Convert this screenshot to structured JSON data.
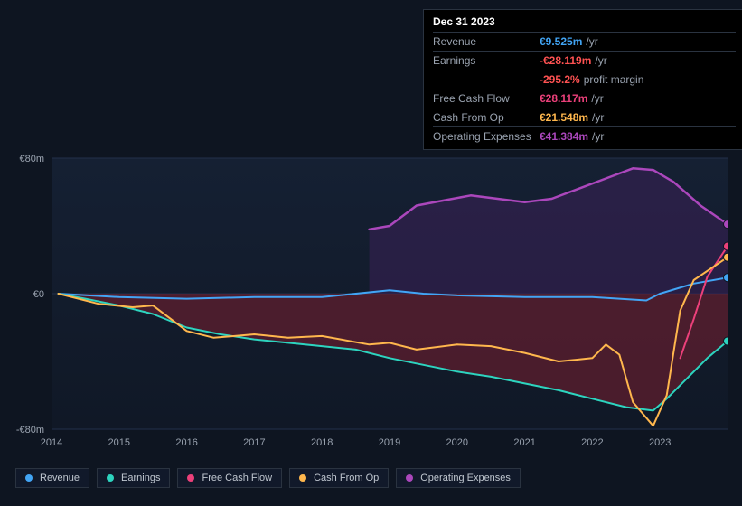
{
  "tooltip": {
    "title": "Dec 31 2023",
    "rows": [
      {
        "label": "Revenue",
        "value": "€9.525m",
        "color": "#42a5f5",
        "suffix": "/yr"
      },
      {
        "label": "Earnings",
        "value": "-€28.119m",
        "color": "#ff5252",
        "suffix": "/yr"
      },
      {
        "label": "",
        "value": "-295.2%",
        "color": "#ff5252",
        "suffix": "profit margin"
      },
      {
        "label": "Free Cash Flow",
        "value": "€28.117m",
        "color": "#ec407a",
        "suffix": "/yr"
      },
      {
        "label": "Cash From Op",
        "value": "€21.548m",
        "color": "#ffb74d",
        "suffix": "/yr"
      },
      {
        "label": "Operating Expenses",
        "value": "€41.384m",
        "color": "#ab47bc",
        "suffix": "/yr"
      }
    ]
  },
  "chart": {
    "type": "line-area",
    "background": "#0e1521",
    "plot_background_top": "#152033",
    "plot_background_bottom": "#101826",
    "negative_area_fill": "#7a1f2f",
    "negative_area_opacity": 0.55,
    "opex_area_fill": "#3a2158",
    "opex_area_opacity": 0.55,
    "grid_color": "#22304a",
    "axis_label_color": "#9aa3b0",
    "axis_label_fontsize": 11,
    "ylim": [
      -80,
      80
    ],
    "y_ticks": [
      {
        "v": 80,
        "label": "€80m"
      },
      {
        "v": 0,
        "label": "€0"
      },
      {
        "v": -80,
        "label": "-€80m"
      }
    ],
    "x_years": [
      2014,
      2015,
      2016,
      2017,
      2018,
      2019,
      2020,
      2021,
      2022,
      2023
    ],
    "series": [
      {
        "name": "Revenue",
        "color": "#42a5f5",
        "width": 2,
        "data": [
          [
            2014.1,
            0
          ],
          [
            2015,
            -2
          ],
          [
            2016,
            -3
          ],
          [
            2017,
            -2
          ],
          [
            2018,
            -2
          ],
          [
            2019,
            2
          ],
          [
            2019.5,
            0
          ],
          [
            2020,
            -1
          ],
          [
            2021,
            -2
          ],
          [
            2022,
            -2
          ],
          [
            2022.8,
            -4
          ],
          [
            2023,
            0
          ],
          [
            2023.5,
            6
          ],
          [
            2024,
            9.5
          ]
        ]
      },
      {
        "name": "Earnings",
        "color": "#2dd4bf",
        "width": 2,
        "fillNegative": true,
        "data": [
          [
            2014.1,
            0
          ],
          [
            2014.5,
            -3
          ],
          [
            2015,
            -7
          ],
          [
            2015.5,
            -12
          ],
          [
            2016,
            -20
          ],
          [
            2016.5,
            -24
          ],
          [
            2017,
            -27
          ],
          [
            2017.5,
            -29
          ],
          [
            2018,
            -31
          ],
          [
            2018.5,
            -33
          ],
          [
            2019,
            -38
          ],
          [
            2019.5,
            -42
          ],
          [
            2020,
            -46
          ],
          [
            2020.5,
            -49
          ],
          [
            2021,
            -53
          ],
          [
            2021.5,
            -57
          ],
          [
            2022,
            -62
          ],
          [
            2022.5,
            -67
          ],
          [
            2022.9,
            -69
          ],
          [
            2023.1,
            -62
          ],
          [
            2023.4,
            -50
          ],
          [
            2023.7,
            -38
          ],
          [
            2024,
            -28
          ]
        ]
      },
      {
        "name": "Free Cash Flow",
        "color": "#ec407a",
        "width": 2,
        "data": [
          [
            2023.3,
            -38
          ],
          [
            2023.5,
            -15
          ],
          [
            2023.7,
            10
          ],
          [
            2024,
            28
          ]
        ]
      },
      {
        "name": "Cash From Op",
        "color": "#ffb74d",
        "width": 2,
        "data": [
          [
            2014.1,
            0
          ],
          [
            2014.7,
            -6
          ],
          [
            2015.2,
            -8
          ],
          [
            2015.5,
            -7
          ],
          [
            2016,
            -22
          ],
          [
            2016.4,
            -26
          ],
          [
            2017,
            -24
          ],
          [
            2017.5,
            -26
          ],
          [
            2018,
            -25
          ],
          [
            2018.7,
            -30
          ],
          [
            2019,
            -29
          ],
          [
            2019.4,
            -33
          ],
          [
            2020,
            -30
          ],
          [
            2020.5,
            -31
          ],
          [
            2021,
            -35
          ],
          [
            2021.5,
            -40
          ],
          [
            2022,
            -38
          ],
          [
            2022.2,
            -30
          ],
          [
            2022.4,
            -36
          ],
          [
            2022.6,
            -64
          ],
          [
            2022.9,
            -78
          ],
          [
            2023.1,
            -60
          ],
          [
            2023.3,
            -10
          ],
          [
            2023.5,
            8
          ],
          [
            2024,
            21.5
          ]
        ]
      },
      {
        "name": "Operating Expenses",
        "color": "#ab47bc",
        "width": 2.5,
        "fillPositive": true,
        "data": [
          [
            2018.7,
            38
          ],
          [
            2019,
            40
          ],
          [
            2019.4,
            52
          ],
          [
            2019.8,
            55
          ],
          [
            2020.2,
            58
          ],
          [
            2020.6,
            56
          ],
          [
            2021,
            54
          ],
          [
            2021.4,
            56
          ],
          [
            2021.8,
            62
          ],
          [
            2022.2,
            68
          ],
          [
            2022.6,
            74
          ],
          [
            2022.9,
            73
          ],
          [
            2023.2,
            66
          ],
          [
            2023.6,
            52
          ],
          [
            2024,
            41
          ]
        ]
      }
    ],
    "markers": [
      {
        "series": "Revenue",
        "x": 2024,
        "y": 9.5,
        "color": "#42a5f5"
      },
      {
        "series": "Earnings",
        "x": 2024,
        "y": -28,
        "color": "#2dd4bf"
      },
      {
        "series": "Free Cash Flow",
        "x": 2024,
        "y": 28,
        "color": "#ec407a"
      },
      {
        "series": "Cash From Op",
        "x": 2024,
        "y": 21.5,
        "color": "#ffb74d"
      },
      {
        "series": "Operating Expenses",
        "x": 2024,
        "y": 41,
        "color": "#ab47bc"
      }
    ]
  },
  "legend": [
    {
      "label": "Revenue",
      "color": "#42a5f5"
    },
    {
      "label": "Earnings",
      "color": "#2dd4bf"
    },
    {
      "label": "Free Cash Flow",
      "color": "#ec407a"
    },
    {
      "label": "Cash From Op",
      "color": "#ffb74d"
    },
    {
      "label": "Operating Expenses",
      "color": "#ab47bc"
    }
  ]
}
